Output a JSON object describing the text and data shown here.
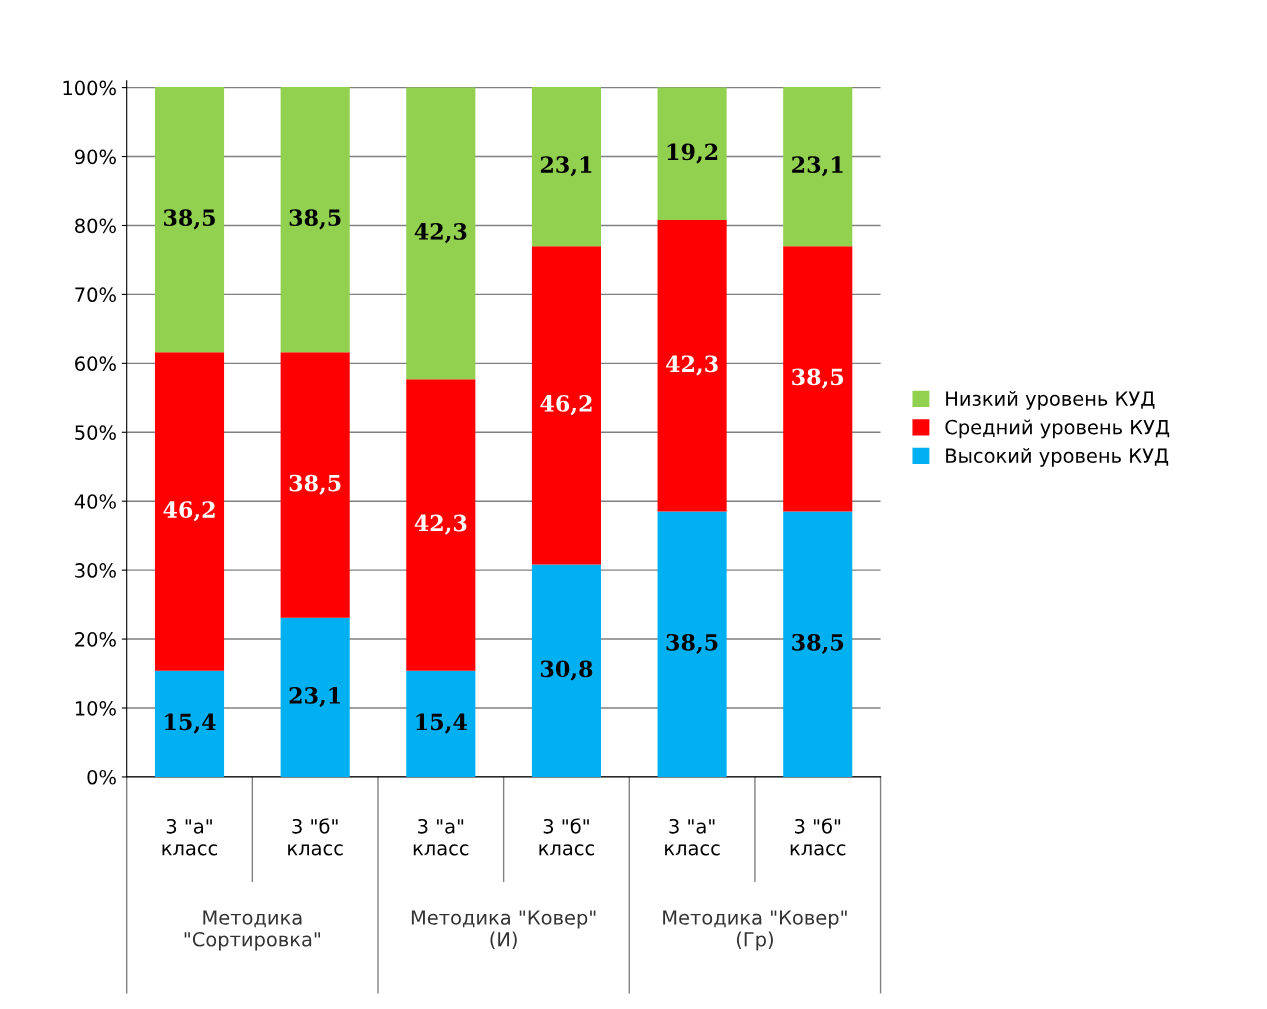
{
  "chart_data": {
    "type": "bar",
    "stacked": true,
    "categories": [
      "3 \"а\"\nкласс",
      "3 \"б\"\nкласс",
      "3 \"а\"\nкласс",
      "3 \"б\"\nкласс",
      "3 \"а\"\nкласс",
      "3 \"б\"\nкласс"
    ],
    "series": [
      {
        "name": "Высокий уровень КУД",
        "color": "#00b0f0",
        "values": [
          15.4,
          23.1,
          15.4,
          30.8,
          38.5,
          38.5
        ],
        "value_labels": [
          "15,4",
          "23,1",
          "15,4",
          "30,8",
          "38,5",
          "38,5"
        ]
      },
      {
        "name": "Средний уровень КУД",
        "color": "#ff0000",
        "values": [
          46.2,
          38.5,
          42.3,
          46.2,
          42.3,
          38.5
        ],
        "value_labels": [
          "46,2",
          "38,5",
          "42,3",
          "46,2",
          "42,3",
          "38,5"
        ]
      },
      {
        "name": "Низкий уровень КУД",
        "color": "#92d050",
        "values": [
          38.5,
          38.5,
          42.3,
          23.1,
          19.2,
          23.1
        ],
        "value_labels": [
          "38,5",
          "38,5",
          "42,3",
          "23,1",
          "19,2",
          "23,1"
        ]
      }
    ],
    "annotations": [
      "Методика\n\"Сортировка\"",
      "Методика \"Ковер\"\n(И)",
      "Методика \"Ковер\"\n(Гр)"
    ],
    "ylim": [
      0,
      101
    ],
    "yticks": [
      {
        "value": 0,
        "label": "0%"
      },
      {
        "value": 10,
        "label": "10%"
      },
      {
        "value": 20,
        "label": "20%"
      },
      {
        "value": 30,
        "label": "30%"
      },
      {
        "value": 40,
        "label": "40%"
      },
      {
        "value": 50,
        "label": "50%"
      },
      {
        "value": 60,
        "label": "60%"
      },
      {
        "value": 70,
        "label": "70%"
      },
      {
        "value": 80,
        "label": "80%"
      },
      {
        "value": 90,
        "label": "90%"
      },
      {
        "value": 100,
        "label": "100%"
      }
    ],
    "grid": "y",
    "legend": "right"
  }
}
